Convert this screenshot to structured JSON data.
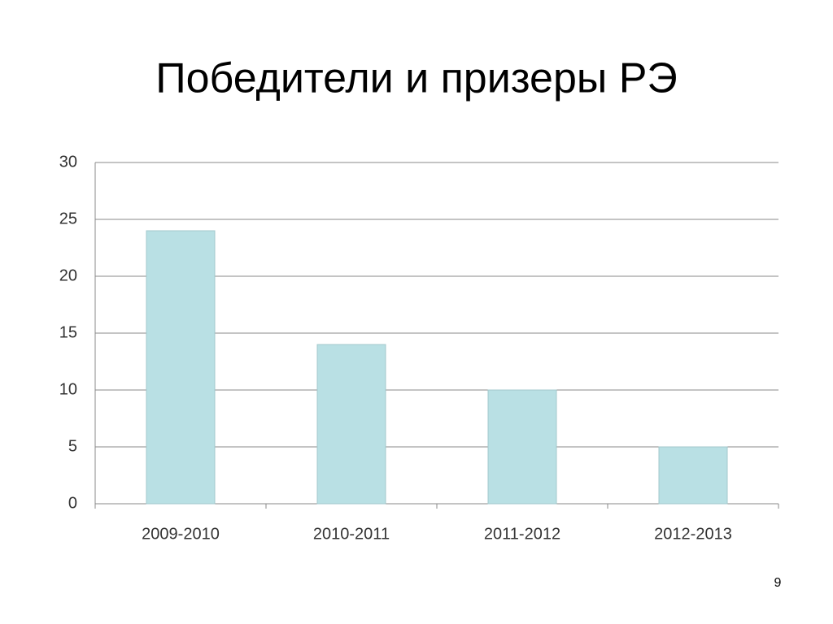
{
  "chart_data": {
    "type": "bar",
    "title": "Победители и призеры РЭ",
    "categories": [
      "2009-2010",
      "2010-2011",
      "2011-2012",
      "2012-2013"
    ],
    "values": [
      24,
      14,
      10,
      5
    ],
    "color": "#b9e0e4",
    "ylim": [
      0,
      30
    ],
    "yticks": [
      0,
      5,
      10,
      15,
      20,
      25,
      30
    ],
    "grid": true
  },
  "slide_number": "9"
}
